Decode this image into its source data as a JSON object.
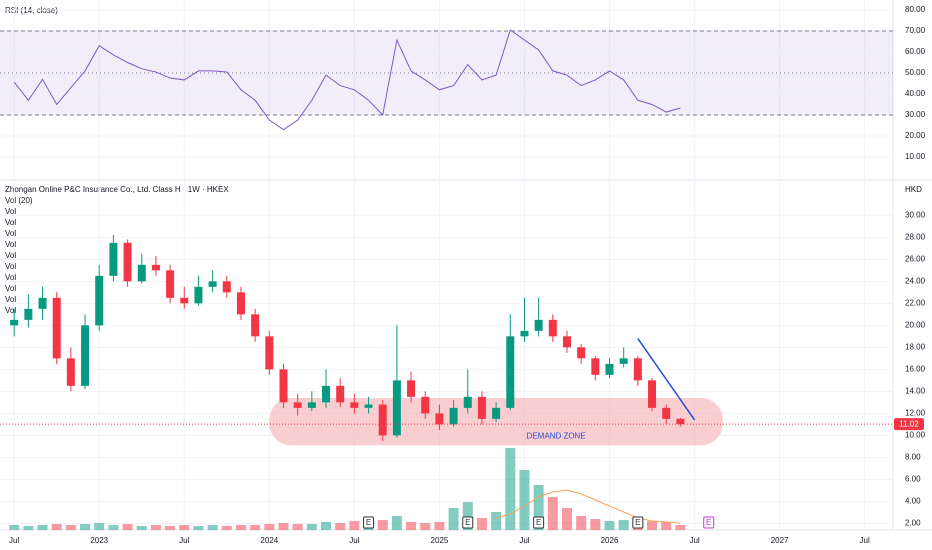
{
  "chart_data": {
    "type": "candlestick",
    "title": "Zhongan Online P&C Insurance Co., Ltd. Class H · 1W · HKEX",
    "currency": "HKD",
    "up_color": "#089981",
    "down_color": "#f23645",
    "x": [
      "2022-07",
      "2022-08",
      "2022-09",
      "2022-10",
      "2022-11",
      "2022-12",
      "2023-01",
      "2023-02",
      "2023-03",
      "2023-04",
      "2023-05",
      "2023-06",
      "2023-07",
      "2023-08",
      "2023-09",
      "2023-10",
      "2023-11",
      "2023-12",
      "2024-01",
      "2024-02",
      "2024-03",
      "2024-04",
      "2024-05",
      "2024-06",
      "2024-07",
      "2024-08",
      "2024-09",
      "2024-10",
      "2024-11",
      "2024-12",
      "2025-01",
      "2025-02",
      "2025-03",
      "2025-04",
      "2025-05",
      "2025-06",
      "2025-07",
      "2025-08",
      "2025-09",
      "2025-10",
      "2025-11",
      "2025-12",
      "2026-01",
      "2026-02",
      "2026-03",
      "2026-04",
      "2026-05",
      "2026-06"
    ],
    "open": [
      20,
      20.5,
      21.5,
      22.5,
      17,
      14.5,
      20,
      24.5,
      27.5,
      24,
      25.5,
      25,
      22.5,
      22,
      23.5,
      24,
      23,
      21,
      19,
      16,
      13,
      12.5,
      13,
      14.5,
      13,
      12.5,
      12.8,
      10,
      15,
      13.5,
      12,
      11,
      12.5,
      13.5,
      11.5,
      12.5,
      19,
      19.5,
      20.5,
      19,
      18,
      17,
      15.5,
      16.5,
      17,
      15,
      12.5,
      11.5
    ],
    "high": [
      21.5,
      22.8,
      23.5,
      23,
      18,
      21,
      25.5,
      28.2,
      27.8,
      26.5,
      26.3,
      25.5,
      23.5,
      24.5,
      25,
      24.5,
      23.5,
      21.5,
      19.5,
      16.5,
      13.8,
      14,
      16,
      15.2,
      13.8,
      13.5,
      13.2,
      20,
      15.8,
      14,
      12.8,
      13.2,
      16,
      14,
      13,
      21,
      22.5,
      22.5,
      21,
      19.5,
      18.3,
      17.2,
      17,
      18,
      17.2,
      15.2,
      12.8,
      11.6
    ],
    "low": [
      19,
      19.8,
      20.5,
      16.5,
      14,
      14.2,
      19.5,
      24,
      23.5,
      23.8,
      24.5,
      22,
      21.5,
      21.8,
      23,
      22.5,
      20.5,
      18.5,
      15.5,
      12.5,
      11.8,
      12.2,
      12.5,
      12.6,
      12,
      12,
      9.5,
      9.8,
      13,
      11.5,
      10.5,
      10.8,
      12,
      11,
      11.2,
      12.3,
      18.5,
      19,
      18.5,
      17.5,
      16.5,
      15,
      15.2,
      16.2,
      14.5,
      12.2,
      11,
      10.8
    ],
    "close": [
      20.5,
      21.5,
      22.5,
      17,
      14.5,
      20,
      24.5,
      27.5,
      24,
      25.5,
      25,
      22.5,
      22,
      23.5,
      24,
      23,
      21,
      19,
      16,
      13,
      12.5,
      13,
      14.5,
      13,
      12.5,
      12.8,
      10,
      15,
      13.5,
      12,
      11,
      12.5,
      13.5,
      11.5,
      12.5,
      19,
      19.5,
      20.5,
      19,
      18,
      17,
      15.5,
      16.5,
      17,
      15,
      12.5,
      11.5,
      11.02
    ],
    "ylim": [
      1.4,
      32.3
    ],
    "yticks": [
      {
        "value": 2,
        "label": "2.00"
      },
      {
        "value": 4,
        "label": "4.00"
      },
      {
        "value": 6,
        "label": "6.00"
      },
      {
        "value": 8,
        "label": "8.00"
      },
      {
        "value": 10,
        "label": "10.00"
      },
      {
        "value": 12,
        "label": "12.00"
      },
      {
        "value": 14,
        "label": "14.00"
      },
      {
        "value": 16,
        "label": "16.00"
      },
      {
        "value": 18,
        "label": "18.00"
      },
      {
        "value": 20,
        "label": "20.00"
      },
      {
        "value": 22,
        "label": "22.00"
      },
      {
        "value": 24,
        "label": "24.00"
      },
      {
        "value": 26,
        "label": "26.00"
      },
      {
        "value": 28,
        "label": "28.00"
      },
      {
        "value": 30,
        "label": "30.00"
      }
    ],
    "xlim": [
      "2022-06",
      "2027-09"
    ],
    "xticks": [
      {
        "value": "2022-07",
        "label": "Jul"
      },
      {
        "value": "2023-01",
        "label": "2023"
      },
      {
        "value": "2023-07",
        "label": "Jul"
      },
      {
        "value": "2024-01",
        "label": "2024"
      },
      {
        "value": "2024-07",
        "label": "Jul"
      },
      {
        "value": "2025-01",
        "label": "2025"
      },
      {
        "value": "2025-07",
        "label": "Jul"
      },
      {
        "value": "2026-01",
        "label": "2026"
      },
      {
        "value": "2026-07",
        "label": "Jul"
      },
      {
        "value": "2027-01",
        "label": "2027"
      },
      {
        "value": "2027-07",
        "label": "Jul"
      }
    ],
    "grid": true,
    "rsi": {
      "label": "RSI (14, close)",
      "color": "#7e57c2",
      "band": [
        30,
        70
      ],
      "mid": 50,
      "values": [
        45.7,
        37,
        47,
        35,
        43,
        51,
        63,
        58.6,
        55,
        52,
        50.5,
        47.6,
        46.7,
        51,
        51,
        50.5,
        42,
        37,
        27.6,
        23,
        27.6,
        37,
        49,
        44,
        42,
        37,
        30,
        65.7,
        51,
        46.7,
        42,
        44,
        54,
        46.7,
        49,
        70.5,
        65.7,
        61,
        51,
        49,
        44,
        46.7,
        51,
        46.7,
        37,
        35,
        31.4,
        33.3
      ],
      "ylim": [
        -1,
        84.8
      ],
      "yticks": [
        {
          "value": 10,
          "label": "10.00"
        },
        {
          "value": 20,
          "label": "20.00"
        },
        {
          "value": 30,
          "label": "30.00"
        },
        {
          "value": 40,
          "label": "40.00"
        },
        {
          "value": 50,
          "label": "50.00"
        },
        {
          "value": 60,
          "label": "60.00"
        },
        {
          "value": 70,
          "label": "70.00"
        },
        {
          "value": 80,
          "label": "80.00"
        }
      ]
    },
    "volume": {
      "label": "Vol (20)",
      "ma_color": "#f7a35c",
      "ylim": [
        0,
        90
      ],
      "values": [
        5,
        4,
        5,
        6,
        5,
        6,
        7,
        5,
        6,
        4,
        5,
        4,
        5,
        4,
        5,
        4,
        5,
        5,
        6,
        7,
        6,
        6,
        8,
        7,
        9,
        8,
        10,
        14,
        8,
        7,
        8,
        22,
        28,
        12,
        18,
        82,
        60,
        45,
        33,
        22,
        14,
        11,
        9,
        10,
        12,
        9,
        8,
        5
      ],
      "ma": [
        null,
        null,
        null,
        null,
        null,
        null,
        null,
        null,
        null,
        null,
        null,
        null,
        null,
        null,
        null,
        null,
        null,
        null,
        null,
        null,
        null,
        null,
        null,
        null,
        null,
        null,
        null,
        null,
        null,
        null,
        null,
        null,
        null,
        null,
        12,
        16,
        24,
        33,
        38,
        40,
        36,
        30,
        24,
        18,
        12,
        9,
        8,
        7
      ]
    },
    "legend_rows": [
      "Vol",
      "Vol",
      "Vol",
      "Vol",
      "Vol",
      "Vol",
      "Vol",
      "Vol",
      "Vol",
      "Vol"
    ],
    "zone": {
      "label": "DEMAND ZONE",
      "low": 9.1,
      "high": 13.4,
      "x": [
        "2024-01",
        "2026-09"
      ],
      "color": "#f4a6ab"
    },
    "trendline": {
      "x": [
        "2026-03",
        "2026-07"
      ],
      "y": [
        18.8,
        11.4
      ],
      "color": "#2a4bd7"
    },
    "events": [
      {
        "x": "2024-08",
        "label": "E",
        "color": "#333333"
      },
      {
        "x": "2025-03",
        "label": "E",
        "color": "#333333"
      },
      {
        "x": "2025-08",
        "label": "E",
        "color": "#333333"
      },
      {
        "x": "2026-03",
        "label": "E",
        "color": "#333333"
      },
      {
        "x": "2026-08",
        "label": "E",
        "color": "#c23bd4"
      }
    ]
  }
}
